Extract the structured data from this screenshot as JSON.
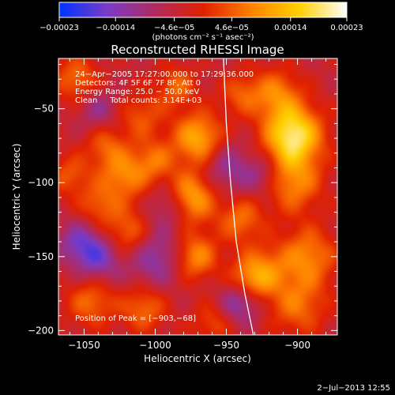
{
  "chart_data": {
    "type": "heatmap",
    "title": "Reconstructed RHESSI Image",
    "xlabel": "Heliocentric X (arcsec)",
    "ylabel": "Heliocentric Y (arcsec)",
    "xlim": [
      -1068,
      -872
    ],
    "ylim": [
      -203,
      -16
    ],
    "x_ticks": [
      -1050,
      -1000,
      -950,
      -900
    ],
    "y_ticks": [
      -50,
      -100,
      -150,
      -200
    ],
    "x_tick_labels": [
      "−1050",
      "−1000",
      "−950",
      "−900"
    ],
    "y_tick_labels": [
      "−50",
      "−100",
      "−150",
      "−200"
    ],
    "colorbar": {
      "range": [
        -0.00023,
        0.00023
      ],
      "tick_values": [
        -0.00023,
        -0.00014,
        -4.6e-05,
        4.6e-05,
        0.00014,
        0.00023
      ],
      "tick_labels": [
        "−0.00023",
        "−0.00014",
        "−4.6e−05",
        "4.6e−05",
        "0.00014",
        "0.00023"
      ],
      "unit_label": "(photons cm⁻² s⁻¹ asec⁻²)",
      "colors": [
        "#0033ff",
        "#7a3cc8",
        "#b02a60",
        "#e02000",
        "#ff8000",
        "#ffd000",
        "#ffffff"
      ]
    },
    "annotations": {
      "time_range": "24−Apr−2005 17:27:00.000 to 17:29:36.000",
      "detectors": "Detectors: 4F 5F 6F 7F 8F, Att 0",
      "energy_range": "Energy Range: 25.0 − 50.0 keV",
      "clean_total": "Clean     Total counts: 3.14E+03",
      "peak": "Position of Peak = [−903,−68]"
    },
    "peak": {
      "x": -903,
      "y": -68
    },
    "limb_curve": [
      {
        "x": -952,
        "y": -16
      },
      {
        "x": -950,
        "y": -60
      },
      {
        "x": -947,
        "y": -100
      },
      {
        "x": -943,
        "y": -140
      },
      {
        "x": -937,
        "y": -175
      },
      {
        "x": -931,
        "y": -203
      }
    ],
    "blobs": [
      {
        "x": -903,
        "y": -68,
        "v": 0.00023,
        "s": 14
      },
      {
        "x": -903,
        "y": -100,
        "v": 0.00012,
        "s": 14
      },
      {
        "x": -893,
        "y": -150,
        "v": 0.00012,
        "s": 14
      },
      {
        "x": -900,
        "y": -183,
        "v": 0.0001,
        "s": 14
      },
      {
        "x": -925,
        "y": -160,
        "v": 0.00011,
        "s": 12
      },
      {
        "x": -915,
        "y": -40,
        "v": 0.00011,
        "s": 12
      },
      {
        "x": -940,
        "y": -40,
        "v": 8e-05,
        "s": 10
      },
      {
        "x": -940,
        "y": -125,
        "v": 0.0001,
        "s": 11
      },
      {
        "x": -935,
        "y": -168,
        "v": 9e-05,
        "s": 10
      },
      {
        "x": -970,
        "y": -70,
        "v": 0.00016,
        "s": 12
      },
      {
        "x": -975,
        "y": -110,
        "v": 0.00016,
        "s": 12
      },
      {
        "x": -972,
        "y": -150,
        "v": 0.00013,
        "s": 11
      },
      {
        "x": -985,
        "y": -35,
        "v": 9e-05,
        "s": 10
      },
      {
        "x": -1000,
        "y": -85,
        "v": 9e-05,
        "s": 10
      },
      {
        "x": -1010,
        "y": -55,
        "v": 8e-05,
        "s": 11
      },
      {
        "x": -1022,
        "y": -95,
        "v": 0.00012,
        "s": 12
      },
      {
        "x": -1020,
        "y": -135,
        "v": 0.00011,
        "s": 12
      },
      {
        "x": -1035,
        "y": -75,
        "v": 8e-05,
        "s": 10
      },
      {
        "x": -1040,
        "y": -115,
        "v": 8e-05,
        "s": 10
      },
      {
        "x": -1045,
        "y": -180,
        "v": 0.0001,
        "s": 12
      },
      {
        "x": -1055,
        "y": -30,
        "v": 0.0001,
        "s": 11
      },
      {
        "x": -1060,
        "y": -95,
        "v": 8e-05,
        "s": 10
      },
      {
        "x": -1008,
        "y": -185,
        "v": 0.0001,
        "s": 11
      },
      {
        "x": -960,
        "y": -195,
        "v": 7e-05,
        "s": 10
      },
      {
        "x": -1000,
        "y": -150,
        "v": -0.0001,
        "s": 14
      },
      {
        "x": -1040,
        "y": -150,
        "v": -0.00012,
        "s": 12
      },
      {
        "x": -950,
        "y": -90,
        "v": -8e-05,
        "s": 12
      },
      {
        "x": -940,
        "y": -180,
        "v": -0.00012,
        "s": 10
      },
      {
        "x": -990,
        "y": -115,
        "v": -8e-05,
        "s": 10
      },
      {
        "x": -1055,
        "y": -140,
        "v": -8e-05,
        "s": 10
      },
      {
        "x": -925,
        "y": -95,
        "v": -7e-05,
        "s": 10
      },
      {
        "x": -1040,
        "y": -50,
        "v": -7e-05,
        "s": 10
      }
    ]
  },
  "footer": {
    "date": "2−Jul−2013 12:55"
  }
}
